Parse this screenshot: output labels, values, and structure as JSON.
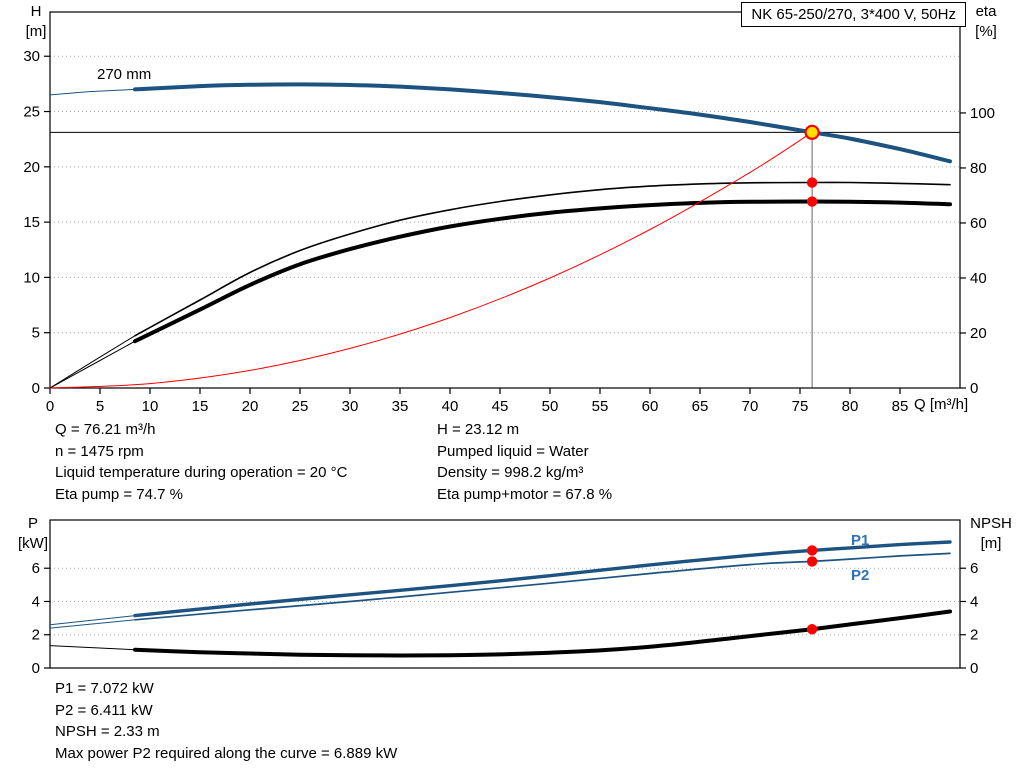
{
  "colors": {
    "curve_blue": "#1d5380",
    "label_blue": "#2e74b5",
    "marker_red": "#ff0000",
    "duty_yellow": "#ffe000",
    "grid": "#aaaaaa"
  },
  "chart_data": [
    {
      "type": "line",
      "name": "pump-head-efficiency-chart",
      "title": "NK 65-250/270, 3*400 V, 50Hz",
      "x_label": "Q [m³/h]",
      "x_range": [
        0,
        91
      ],
      "x_ticks": [
        0,
        5,
        10,
        15,
        20,
        25,
        30,
        35,
        40,
        45,
        50,
        55,
        60,
        65,
        70,
        75,
        80,
        85
      ],
      "left_axis": {
        "label": [
          "H",
          "[m]"
        ],
        "ticks": [
          0,
          5,
          10,
          15,
          20,
          25,
          30
        ],
        "range": [
          0,
          34
        ]
      },
      "right_axis": {
        "label": [
          "eta",
          "[%]"
        ],
        "ticks": [
          0,
          20,
          40,
          60,
          80,
          100
        ],
        "range": [
          0,
          136.7
        ]
      },
      "grid": true,
      "duty_lines": {
        "q": 76.21,
        "h": 23.12
      },
      "series": [
        {
          "name": "head-curve",
          "label": "270 mm",
          "color": "#1d5380",
          "width": 4,
          "axis": "left",
          "lead": [
            [
              0,
              26.5
            ],
            [
              4,
              26.8
            ],
            [
              8.5,
              27.0
            ]
          ],
          "points": [
            [
              8.5,
              27.0
            ],
            [
              15,
              27.3
            ],
            [
              20,
              27.42
            ],
            [
              25,
              27.45
            ],
            [
              30,
              27.4
            ],
            [
              35,
              27.25
            ],
            [
              40,
              27.0
            ],
            [
              45,
              26.68
            ],
            [
              50,
              26.3
            ],
            [
              55,
              25.85
            ],
            [
              60,
              25.3
            ],
            [
              65,
              24.72
            ],
            [
              70,
              24.05
            ],
            [
              76.21,
              23.12
            ],
            [
              80,
              22.55
            ],
            [
              85,
              21.6
            ],
            [
              90,
              20.5
            ]
          ]
        },
        {
          "name": "eta-pump-curve",
          "color": "#000000",
          "width": 1.6,
          "axis": "right",
          "lead": [
            [
              0,
              0
            ],
            [
              4,
              9
            ],
            [
              8.5,
              19
            ]
          ],
          "points": [
            [
              8.5,
              19
            ],
            [
              15,
              32
            ],
            [
              20,
              42
            ],
            [
              25,
              50
            ],
            [
              30,
              56
            ],
            [
              35,
              61
            ],
            [
              40,
              64.8
            ],
            [
              45,
              67.8
            ],
            [
              50,
              70.2
            ],
            [
              55,
              72.1
            ],
            [
              60,
              73.4
            ],
            [
              65,
              74.2
            ],
            [
              70,
              74.6
            ],
            [
              76.21,
              74.7
            ],
            [
              80,
              74.7
            ],
            [
              85,
              74.4
            ],
            [
              90,
              73.9
            ]
          ]
        },
        {
          "name": "eta-pump-motor-curve",
          "color": "#000000",
          "width": 4,
          "axis": "right",
          "lead": [
            [
              0,
              0
            ],
            [
              4,
              8
            ],
            [
              8.5,
              17
            ]
          ],
          "points": [
            [
              8.5,
              17
            ],
            [
              15,
              28.5
            ],
            [
              20,
              37.5
            ],
            [
              25,
              45
            ],
            [
              30,
              50.5
            ],
            [
              35,
              55
            ],
            [
              40,
              58.7
            ],
            [
              45,
              61.5
            ],
            [
              50,
              63.7
            ],
            [
              55,
              65.3
            ],
            [
              60,
              66.5
            ],
            [
              65,
              67.3
            ],
            [
              70,
              67.7
            ],
            [
              76.21,
              67.8
            ],
            [
              80,
              67.7
            ],
            [
              85,
              67.4
            ],
            [
              90,
              66.8
            ]
          ]
        },
        {
          "name": "system-curve",
          "color": "#ff0000",
          "width": 1,
          "axis": "left",
          "points": [
            [
              0,
              0
            ],
            [
              10,
              0.4
            ],
            [
              20,
              1.59
            ],
            [
              30,
              3.58
            ],
            [
              40,
              6.37
            ],
            [
              50,
              9.95
            ],
            [
              60,
              14.33
            ],
            [
              70,
              19.5
            ],
            [
              76.21,
              23.12
            ]
          ]
        }
      ],
      "markers": [
        {
          "name": "duty-point",
          "q": 76.21,
          "v": 23.12,
          "axis": "left",
          "style": "duty"
        },
        {
          "name": "eta-pump-point",
          "q": 76.21,
          "v": 74.7,
          "axis": "right",
          "style": "dot"
        },
        {
          "name": "eta-pump-motor-point",
          "q": 76.21,
          "v": 67.8,
          "axis": "right",
          "style": "dot"
        }
      ]
    },
    {
      "type": "line",
      "name": "power-npsh-chart",
      "x_range": [
        0,
        91
      ],
      "x_ticks": [],
      "left_axis": {
        "label": [
          "P",
          "[kW]"
        ],
        "ticks": [
          0,
          2,
          4,
          6
        ],
        "range": [
          0,
          8.9
        ]
      },
      "right_axis": {
        "label": [
          "NPSH",
          "[m]"
        ],
        "ticks": [
          0,
          2,
          4,
          6
        ],
        "range": [
          0,
          8.9
        ]
      },
      "grid": true,
      "series": [
        {
          "name": "p1-curve",
          "label": "P1",
          "color": "#1d5380",
          "width": 3.4,
          "axis": "left",
          "lead": [
            [
              0,
              2.6
            ],
            [
              8.5,
              3.15
            ]
          ],
          "points": [
            [
              8.5,
              3.15
            ],
            [
              20,
              3.85
            ],
            [
              30,
              4.4
            ],
            [
              40,
              4.95
            ],
            [
              50,
              5.55
            ],
            [
              60,
              6.2
            ],
            [
              70,
              6.78
            ],
            [
              76.21,
              7.072
            ],
            [
              80,
              7.22
            ],
            [
              85,
              7.42
            ],
            [
              90,
              7.58
            ]
          ]
        },
        {
          "name": "p2-curve",
          "label": "P2",
          "color": "#1d5380",
          "width": 1.7,
          "axis": "left",
          "lead": [
            [
              0,
              2.4
            ],
            [
              8.5,
              2.9
            ]
          ],
          "points": [
            [
              8.5,
              2.9
            ],
            [
              20,
              3.5
            ],
            [
              30,
              4.0
            ],
            [
              40,
              4.55
            ],
            [
              50,
              5.1
            ],
            [
              60,
              5.68
            ],
            [
              70,
              6.22
            ],
            [
              76.21,
              6.411
            ],
            [
              80,
              6.55
            ],
            [
              85,
              6.74
            ],
            [
              90,
              6.889
            ]
          ]
        },
        {
          "name": "npsh-curve",
          "color": "#000000",
          "width": 4,
          "axis": "right",
          "lead": [
            [
              0,
              1.35
            ],
            [
              8.5,
              1.1
            ]
          ],
          "points": [
            [
              8.5,
              1.1
            ],
            [
              15,
              0.95
            ],
            [
              20,
              0.87
            ],
            [
              25,
              0.8
            ],
            [
              30,
              0.77
            ],
            [
              35,
              0.75
            ],
            [
              40,
              0.77
            ],
            [
              45,
              0.82
            ],
            [
              50,
              0.92
            ],
            [
              55,
              1.06
            ],
            [
              60,
              1.28
            ],
            [
              65,
              1.58
            ],
            [
              70,
              1.92
            ],
            [
              76.21,
              2.33
            ],
            [
              80,
              2.62
            ],
            [
              85,
              3.0
            ],
            [
              90,
              3.4
            ]
          ]
        }
      ],
      "markers": [
        {
          "name": "p1-point",
          "q": 76.21,
          "v": 7.072,
          "axis": "left",
          "style": "dot"
        },
        {
          "name": "p2-point",
          "q": 76.21,
          "v": 6.411,
          "axis": "left",
          "style": "dot"
        },
        {
          "name": "npsh-point",
          "q": 76.21,
          "v": 2.33,
          "axis": "right",
          "style": "dot"
        }
      ]
    }
  ],
  "top_info": {
    "left": [
      "Q = 76.21 m³/h",
      "n = 1475 rpm",
      "Liquid temperature during operation = 20 °C",
      "Eta pump = 74.7 %"
    ],
    "right": [
      "H = 23.12 m",
      "Pumped liquid = Water",
      "Density = 998.2 kg/m³",
      "Eta pump+motor = 67.8 %"
    ]
  },
  "bottom_info": [
    "P1 = 7.072 kW",
    "P2 = 6.411 kW",
    "NPSH = 2.33 m",
    "Max power P2 required along the curve = 6.889 kW"
  ]
}
